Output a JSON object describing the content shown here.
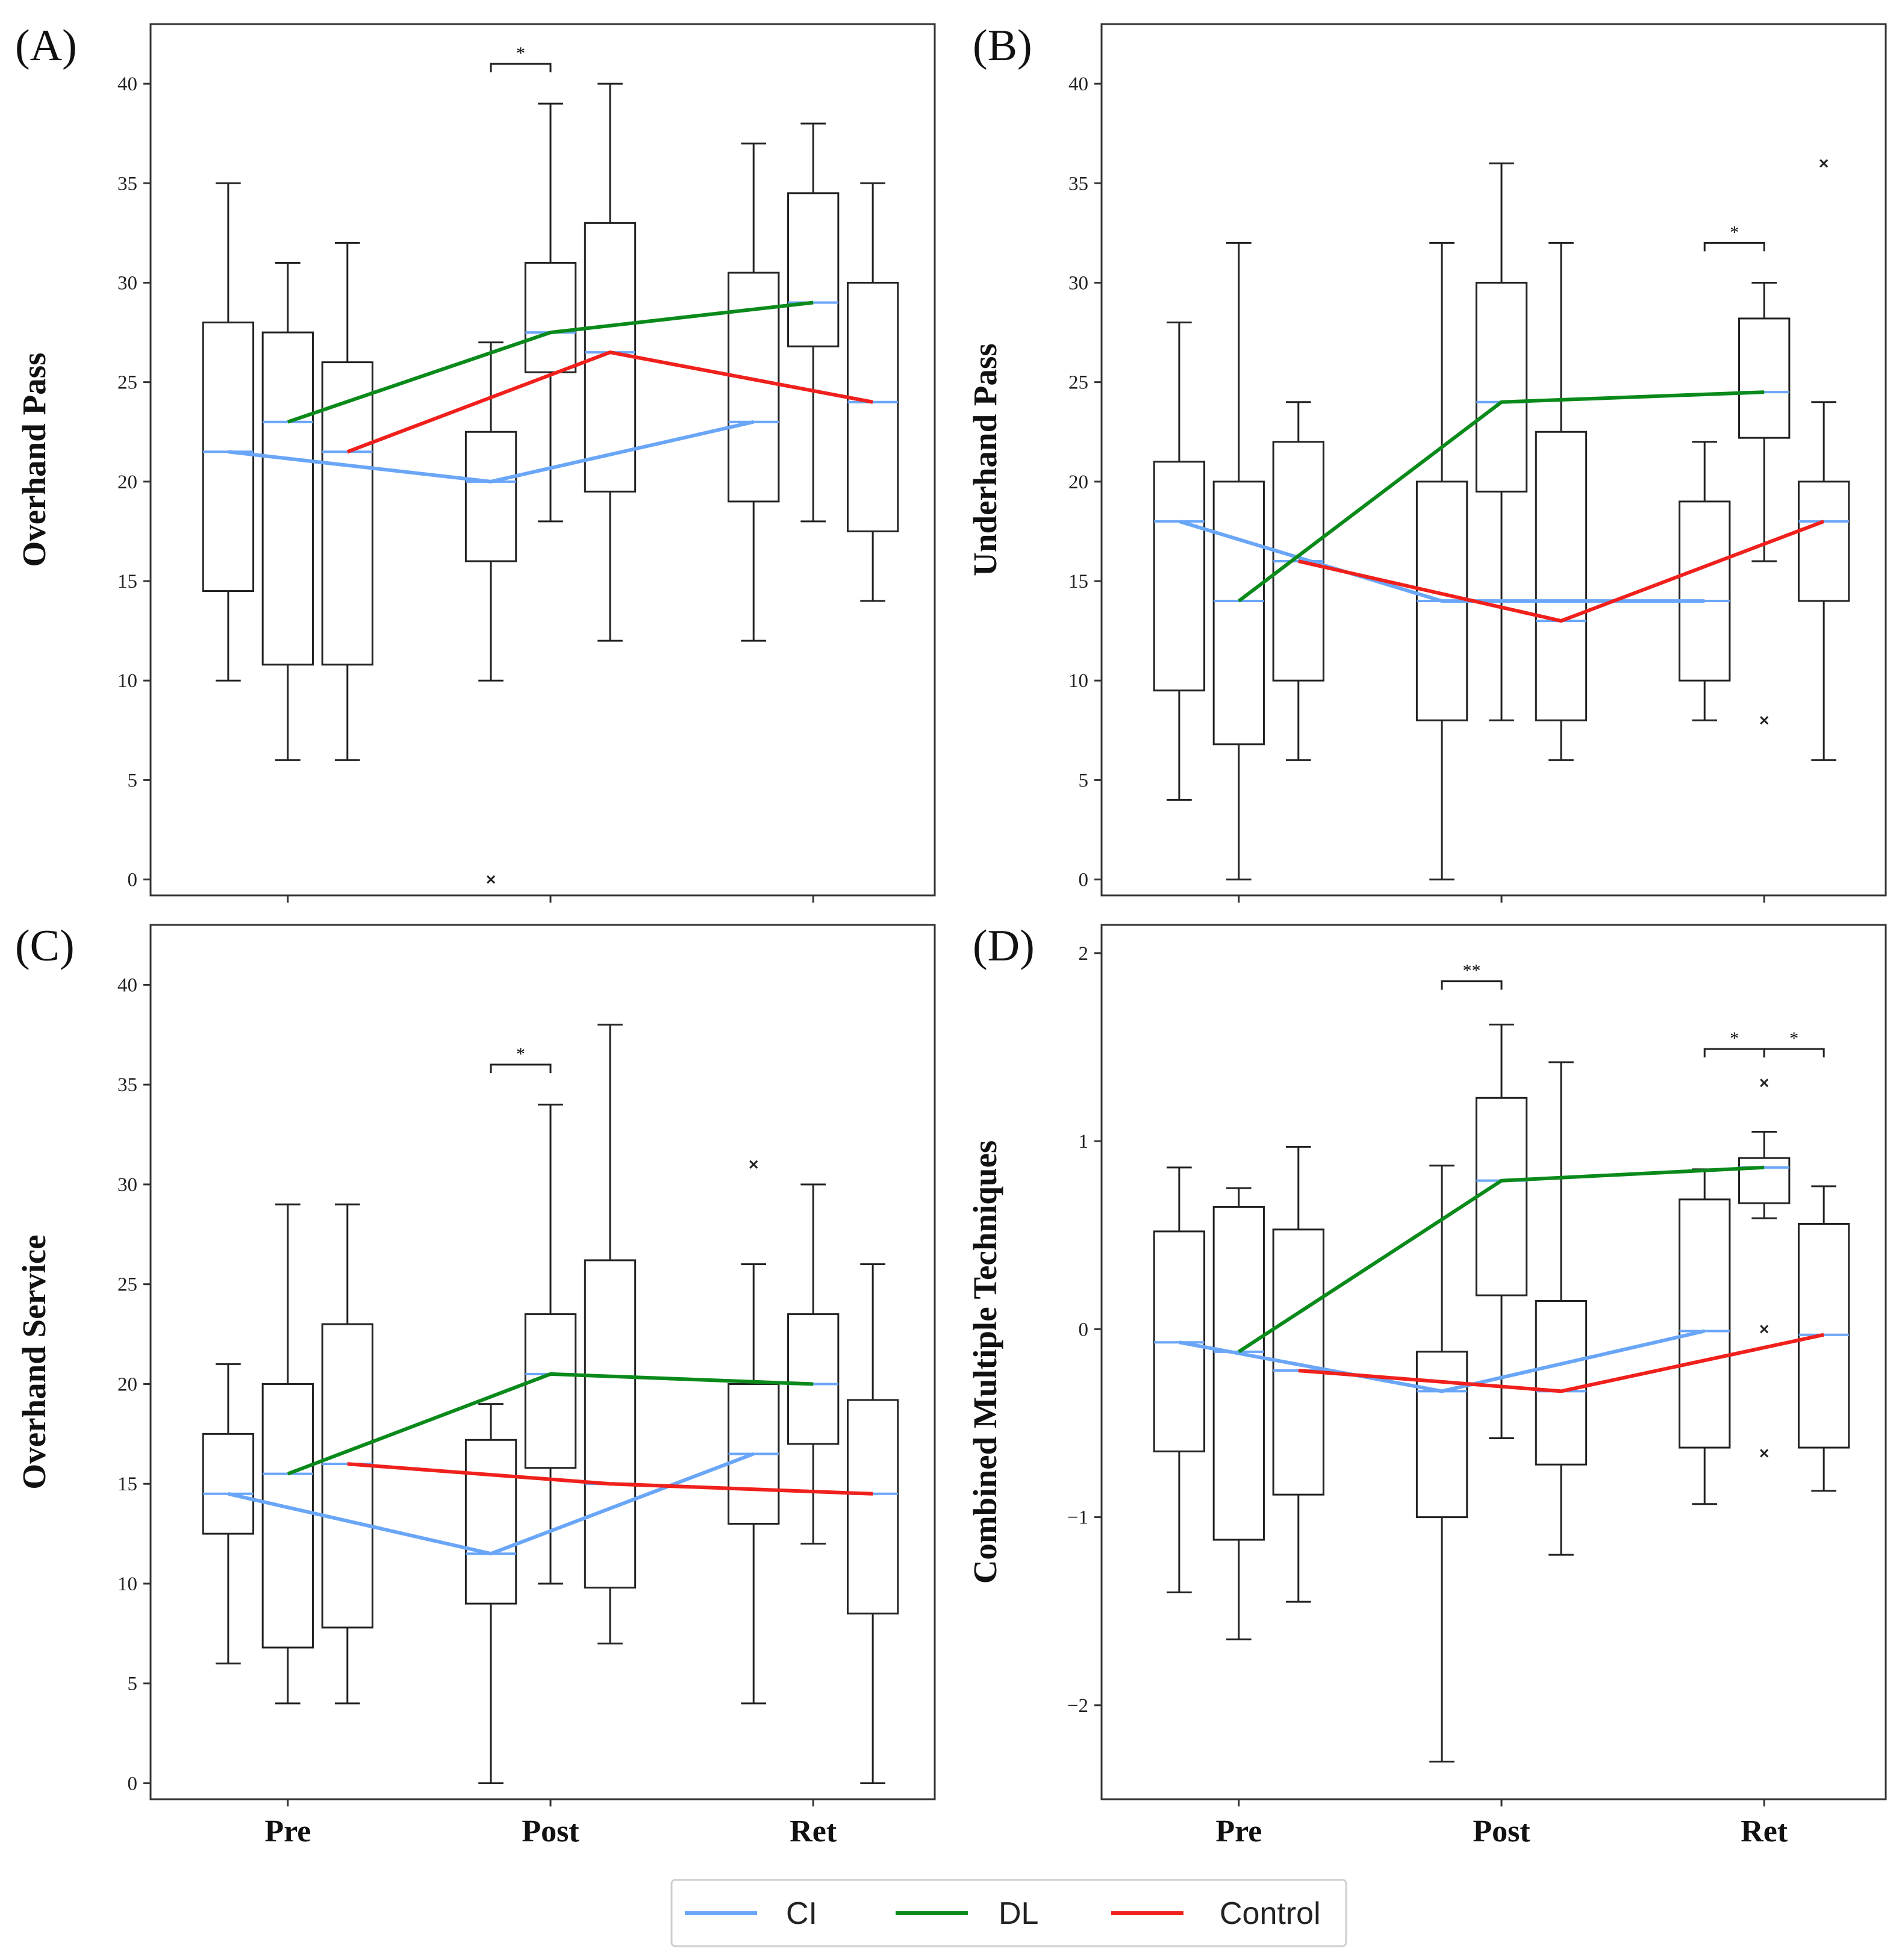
{
  "legend": {
    "items": [
      {
        "name": "CI",
        "color": "#6aa6f8"
      },
      {
        "name": "DL",
        "color": "#0a8a1a"
      },
      {
        "name": "Control",
        "color": "#f0201c"
      }
    ]
  },
  "chart_data": [
    {
      "type": "box",
      "panel": "(A)",
      "ylabel": "Overhand Pass",
      "xlabel": "",
      "categories": [
        "Pre",
        "Post",
        "Ret"
      ],
      "ylim": [
        -0.8,
        43
      ],
      "yticks": [
        0,
        5,
        10,
        15,
        20,
        25,
        30,
        35,
        40
      ],
      "ytick_labels": [
        "0",
        "5",
        "10",
        "15",
        "20",
        "25",
        "30",
        "35",
        "40"
      ],
      "groups": [
        "CI",
        "DL",
        "Control"
      ],
      "boxes": [
        {
          "time": "Pre",
          "group": "CI",
          "whislo": 10,
          "q1": 14.5,
          "med": 21.5,
          "q3": 28,
          "whishi": 35,
          "fliers": []
        },
        {
          "time": "Pre",
          "group": "DL",
          "whislo": 6,
          "q1": 10.8,
          "med": 23,
          "q3": 27.5,
          "whishi": 31,
          "fliers": []
        },
        {
          "time": "Pre",
          "group": "Control",
          "whislo": 6,
          "q1": 10.8,
          "med": 21.5,
          "q3": 26,
          "whishi": 32,
          "fliers": []
        },
        {
          "time": "Post",
          "group": "CI",
          "whislo": 10,
          "q1": 16,
          "med": 20,
          "q3": 22.5,
          "whishi": 27,
          "fliers": [
            0
          ]
        },
        {
          "time": "Post",
          "group": "DL",
          "whislo": 18,
          "q1": 25.5,
          "med": 27.5,
          "q3": 31,
          "whishi": 39,
          "fliers": []
        },
        {
          "time": "Post",
          "group": "Control",
          "whislo": 12,
          "q1": 19.5,
          "med": 26.5,
          "q3": 33,
          "whishi": 40,
          "fliers": []
        },
        {
          "time": "Ret",
          "group": "CI",
          "whislo": 12,
          "q1": 19,
          "med": 23,
          "q3": 30.5,
          "whishi": 37,
          "fliers": []
        },
        {
          "time": "Ret",
          "group": "DL",
          "whislo": 18,
          "q1": 26.8,
          "med": 29,
          "q3": 34.5,
          "whishi": 38,
          "fliers": []
        },
        {
          "time": "Ret",
          "group": "Control",
          "whislo": 14,
          "q1": 17.5,
          "med": 24,
          "q3": 30,
          "whishi": 35,
          "fliers": []
        }
      ],
      "mean_lines": [
        {
          "group": "CI",
          "values": [
            21.5,
            20,
            23
          ]
        },
        {
          "group": "DL",
          "values": [
            23,
            27.5,
            29
          ]
        },
        {
          "group": "Control",
          "values": [
            21.5,
            26.5,
            24
          ]
        }
      ],
      "significance": [
        {
          "time": "Post",
          "from": "CI",
          "to": "DL",
          "y": 41,
          "label": "*"
        }
      ]
    },
    {
      "type": "box",
      "panel": "(B)",
      "ylabel": "Underhand Pass",
      "xlabel": "",
      "categories": [
        "Pre",
        "Post",
        "Ret"
      ],
      "ylim": [
        -0.8,
        43
      ],
      "yticks": [
        0,
        5,
        10,
        15,
        20,
        25,
        30,
        35,
        40
      ],
      "ytick_labels": [
        "0",
        "5",
        "10",
        "15",
        "20",
        "25",
        "30",
        "35",
        "40"
      ],
      "groups": [
        "CI",
        "DL",
        "Control"
      ],
      "boxes": [
        {
          "time": "Pre",
          "group": "CI",
          "whislo": 4,
          "q1": 9.5,
          "med": 18,
          "q3": 21,
          "whishi": 28,
          "fliers": []
        },
        {
          "time": "Pre",
          "group": "DL",
          "whislo": 0,
          "q1": 6.8,
          "med": 14,
          "q3": 20,
          "whishi": 32,
          "fliers": []
        },
        {
          "time": "Pre",
          "group": "Control",
          "whislo": 6,
          "q1": 10,
          "med": 16,
          "q3": 22,
          "whishi": 24,
          "fliers": []
        },
        {
          "time": "Post",
          "group": "CI",
          "whislo": 0,
          "q1": 8,
          "med": 14,
          "q3": 20,
          "whishi": 32,
          "fliers": []
        },
        {
          "time": "Post",
          "group": "DL",
          "whislo": 8,
          "q1": 19.5,
          "med": 24,
          "q3": 30,
          "whishi": 36,
          "fliers": []
        },
        {
          "time": "Post",
          "group": "Control",
          "whislo": 6,
          "q1": 8,
          "med": 13,
          "q3": 22.5,
          "whishi": 32,
          "fliers": []
        },
        {
          "time": "Ret",
          "group": "CI",
          "whislo": 8,
          "q1": 10,
          "med": 14,
          "q3": 19,
          "whishi": 22,
          "fliers": []
        },
        {
          "time": "Ret",
          "group": "DL",
          "whislo": 16,
          "q1": 22.2,
          "med": 24.5,
          "q3": 28.2,
          "whishi": 30,
          "fliers": [
            8
          ]
        },
        {
          "time": "Ret",
          "group": "Control",
          "whislo": 6,
          "q1": 14,
          "med": 18,
          "q3": 20,
          "whishi": 24,
          "fliers": [
            36
          ]
        }
      ],
      "mean_lines": [
        {
          "group": "CI",
          "values": [
            18,
            14,
            14
          ]
        },
        {
          "group": "DL",
          "values": [
            14,
            24,
            24.5
          ]
        },
        {
          "group": "Control",
          "values": [
            16,
            13,
            18
          ]
        }
      ],
      "significance": [
        {
          "time": "Ret",
          "from": "CI",
          "to": "DL",
          "y": 32,
          "label": "*"
        }
      ]
    },
    {
      "type": "box",
      "panel": "(C)",
      "ylabel": "Overhand Service",
      "xlabel": "",
      "categories": [
        "Pre",
        "Post",
        "Ret"
      ],
      "ylim": [
        -0.8,
        43
      ],
      "yticks": [
        0,
        5,
        10,
        15,
        20,
        25,
        30,
        35,
        40
      ],
      "ytick_labels": [
        "0",
        "5",
        "10",
        "15",
        "20",
        "25",
        "30",
        "35",
        "40"
      ],
      "groups": [
        "CI",
        "DL",
        "Control"
      ],
      "boxes": [
        {
          "time": "Pre",
          "group": "CI",
          "whislo": 6,
          "q1": 12.5,
          "med": 14.5,
          "q3": 17.5,
          "whishi": 21,
          "fliers": []
        },
        {
          "time": "Pre",
          "group": "DL",
          "whislo": 4,
          "q1": 6.8,
          "med": 15.5,
          "q3": 20,
          "whishi": 29,
          "fliers": []
        },
        {
          "time": "Pre",
          "group": "Control",
          "whislo": 4,
          "q1": 7.8,
          "med": 16,
          "q3": 23,
          "whishi": 29,
          "fliers": []
        },
        {
          "time": "Post",
          "group": "CI",
          "whislo": 0,
          "q1": 9,
          "med": 11.5,
          "q3": 17.2,
          "whishi": 19,
          "fliers": []
        },
        {
          "time": "Post",
          "group": "DL",
          "whislo": 10,
          "q1": 15.8,
          "med": 20.5,
          "q3": 23.5,
          "whishi": 34,
          "fliers": []
        },
        {
          "time": "Post",
          "group": "Control",
          "whislo": 7,
          "q1": 9.8,
          "med": 15,
          "q3": 26.2,
          "whishi": 38,
          "fliers": []
        },
        {
          "time": "Ret",
          "group": "CI",
          "whislo": 4,
          "q1": 13,
          "med": 16.5,
          "q3": 20,
          "whishi": 26,
          "fliers": [
            31
          ]
        },
        {
          "time": "Ret",
          "group": "DL",
          "whislo": 12,
          "q1": 17,
          "med": 20,
          "q3": 23.5,
          "whishi": 30,
          "fliers": []
        },
        {
          "time": "Ret",
          "group": "Control",
          "whislo": 0,
          "q1": 8.5,
          "med": 14.5,
          "q3": 19.2,
          "whishi": 26,
          "fliers": []
        }
      ],
      "mean_lines": [
        {
          "group": "CI",
          "values": [
            14.5,
            11.5,
            16.5
          ]
        },
        {
          "group": "DL",
          "values": [
            15.5,
            20.5,
            20
          ]
        },
        {
          "group": "Control",
          "values": [
            16,
            15,
            14.5
          ]
        }
      ],
      "significance": [
        {
          "time": "Post",
          "from": "CI",
          "to": "DL",
          "y": 36,
          "label": "*"
        }
      ]
    },
    {
      "type": "box",
      "panel": "(D)",
      "ylabel": "Combined Multiple Techniques",
      "xlabel": "",
      "categories": [
        "Pre",
        "Post",
        "Ret"
      ],
      "ylim": [
        -2.5,
        2.15
      ],
      "yticks": [
        -2,
        -1,
        0,
        1,
        2
      ],
      "ytick_labels": [
        "−2",
        "−1",
        "0",
        "1",
        "2"
      ],
      "groups": [
        "CI",
        "DL",
        "Control"
      ],
      "boxes": [
        {
          "time": "Pre",
          "group": "CI",
          "whislo": -1.4,
          "q1": -0.65,
          "med": -0.07,
          "q3": 0.52,
          "whishi": 0.86,
          "fliers": []
        },
        {
          "time": "Pre",
          "group": "DL",
          "whislo": -1.65,
          "q1": -1.12,
          "med": -0.12,
          "q3": 0.65,
          "whishi": 0.75,
          "fliers": []
        },
        {
          "time": "Pre",
          "group": "Control",
          "whislo": -1.45,
          "q1": -0.88,
          "med": -0.22,
          "q3": 0.53,
          "whishi": 0.97,
          "fliers": []
        },
        {
          "time": "Post",
          "group": "CI",
          "whislo": -2.3,
          "q1": -1.0,
          "med": -0.33,
          "q3": -0.12,
          "whishi": 0.87,
          "fliers": []
        },
        {
          "time": "Post",
          "group": "DL",
          "whislo": -0.58,
          "q1": 0.18,
          "med": 0.79,
          "q3": 1.23,
          "whishi": 1.62,
          "fliers": []
        },
        {
          "time": "Post",
          "group": "Control",
          "whislo": -1.2,
          "q1": -0.72,
          "med": -0.33,
          "q3": 0.15,
          "whishi": 1.42,
          "fliers": []
        },
        {
          "time": "Ret",
          "group": "CI",
          "whislo": -0.93,
          "q1": -0.63,
          "med": -0.01,
          "q3": 0.69,
          "whishi": 0.85,
          "fliers": []
        },
        {
          "time": "Ret",
          "group": "DL",
          "whislo": 0.59,
          "q1": 0.67,
          "med": 0.86,
          "q3": 0.91,
          "whishi": 1.05,
          "fliers": [
            1.31,
            0.0,
            -0.66
          ]
        },
        {
          "time": "Ret",
          "group": "Control",
          "whislo": -0.86,
          "q1": -0.63,
          "med": -0.03,
          "q3": 0.56,
          "whishi": 0.76,
          "fliers": []
        }
      ],
      "mean_lines": [
        {
          "group": "CI",
          "values": [
            -0.07,
            -0.33,
            -0.01
          ]
        },
        {
          "group": "DL",
          "values": [
            -0.12,
            0.79,
            0.86
          ]
        },
        {
          "group": "Control",
          "values": [
            -0.22,
            -0.33,
            -0.03
          ]
        }
      ],
      "significance": [
        {
          "time": "Post",
          "from": "CI",
          "to": "DL",
          "y": 1.85,
          "label": "**"
        },
        {
          "time": "Ret",
          "from": "CI",
          "to": "DL",
          "y": 1.49,
          "label": "*"
        },
        {
          "time": "Ret",
          "from": "DL",
          "to": "Control",
          "y": 1.49,
          "label": "*"
        }
      ]
    }
  ]
}
